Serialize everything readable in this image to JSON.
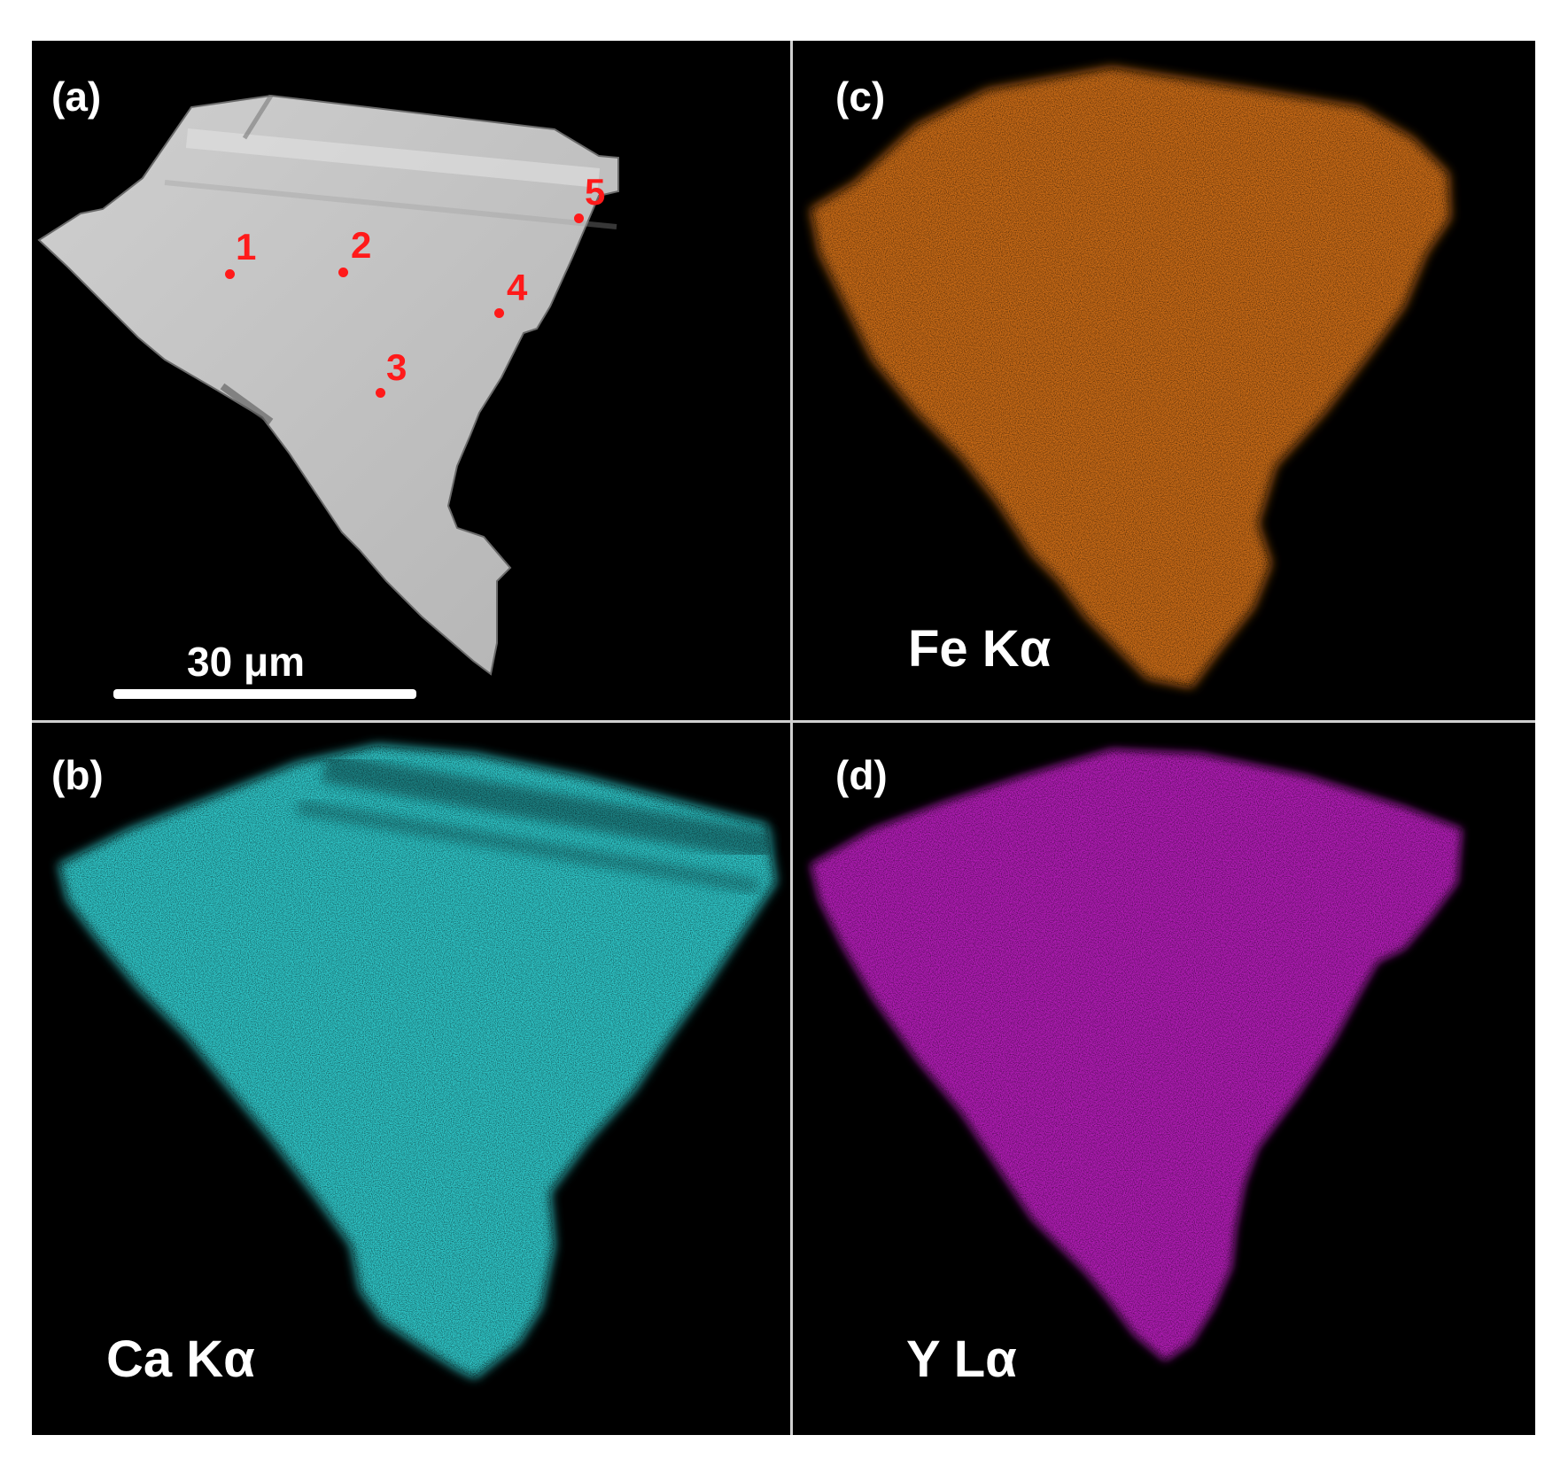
{
  "panels": {
    "a": {
      "label": "(a)",
      "fill_color": "#c4c4c4"
    },
    "b": {
      "label": "(b)",
      "element": "Ca Kα",
      "map_color": "#2ec4c6"
    },
    "c": {
      "label": "(c)",
      "element": "Fe Kα",
      "map_color": "#c86a12"
    },
    "d": {
      "label": "(d)",
      "element": "Y Lα",
      "map_color": "#b01eb4"
    }
  },
  "points": [
    "1",
    "2",
    "3",
    "4",
    "5"
  ],
  "scale_bar": {
    "label": "30 μm"
  },
  "colors": {
    "marker": "#ff1a1a",
    "background": "#000000",
    "divider": "#cfcfcf"
  }
}
